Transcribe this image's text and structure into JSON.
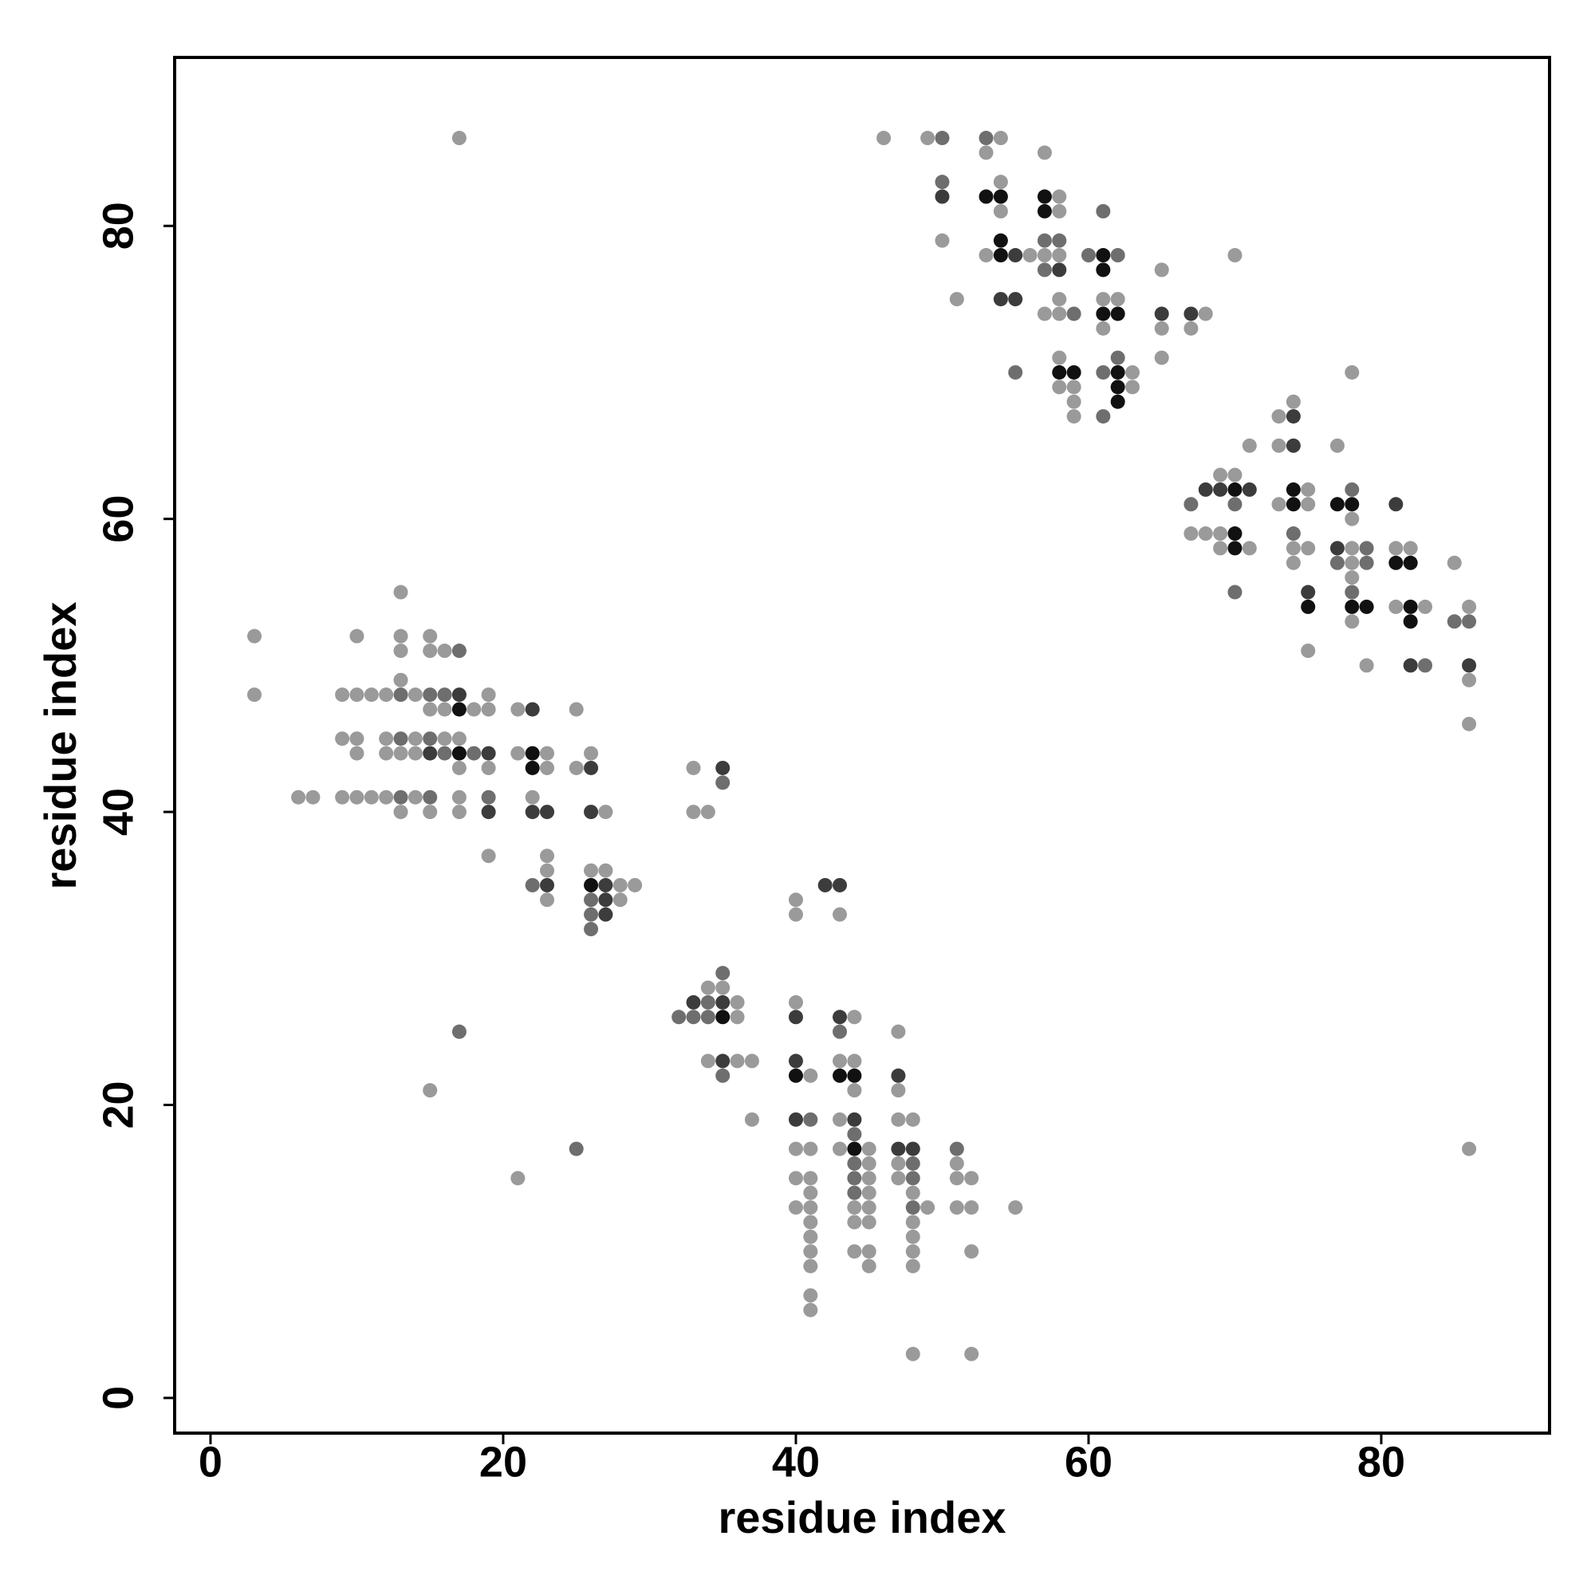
{
  "chart_data": {
    "type": "scatter",
    "xlabel": "residue index",
    "ylabel": "residue index",
    "xlim": [
      -2.45,
      91.5
    ],
    "ylim": [
      -2.4,
      91.5
    ],
    "xticks": [
      0,
      20,
      40,
      60,
      80
    ],
    "yticks": [
      0,
      20,
      40,
      60,
      80
    ],
    "grid": false,
    "series": [
      {
        "color": "#9a9a9a",
        "x": [
          17,
          46,
          49,
          54,
          53,
          57,
          54,
          58,
          54,
          58,
          50,
          53,
          56,
          57,
          58,
          70,
          65,
          51,
          58,
          61,
          62,
          57,
          58,
          68,
          61,
          65,
          67,
          58,
          65,
          63,
          58,
          59,
          63,
          59,
          59,
          78,
          74,
          73,
          71,
          73,
          77,
          69,
          70,
          75,
          73,
          75,
          78,
          67,
          68,
          69,
          69,
          71,
          74,
          75,
          78,
          81,
          82,
          74,
          78,
          85,
          78,
          81,
          83,
          86,
          78,
          75,
          79,
          86,
          86,
          86,
          13,
          3,
          10,
          13,
          15,
          13,
          15,
          16,
          13,
          3,
          9,
          10,
          11,
          12,
          14,
          19,
          15,
          16,
          18,
          19,
          21,
          25,
          9,
          10,
          12,
          14,
          16,
          17,
          10,
          12,
          13,
          14,
          21,
          23,
          26,
          17,
          19,
          23,
          25,
          33,
          6,
          7,
          9,
          10,
          11,
          12,
          14,
          17,
          22,
          13,
          15,
          17,
          27,
          33,
          34,
          19,
          23,
          23,
          26,
          27,
          28,
          29,
          23,
          28,
          40,
          40,
          43,
          34,
          35,
          36,
          40,
          36,
          44,
          47,
          34,
          36,
          37,
          43,
          44,
          41,
          15,
          44,
          47,
          37,
          43,
          47,
          48,
          40,
          41,
          43,
          45,
          45,
          47,
          51,
          21,
          40,
          41,
          45,
          47,
          51,
          52,
          41,
          45,
          48,
          40,
          41,
          44,
          45,
          49,
          51,
          52,
          55,
          41,
          44,
          45,
          48,
          41,
          48,
          41,
          44,
          45,
          48,
          52,
          41,
          45,
          48,
          41,
          41,
          48,
          52
        ],
        "y": [
          86,
          86,
          86,
          86,
          85,
          85,
          83,
          82,
          81,
          81,
          79,
          78,
          78,
          78,
          78,
          78,
          77,
          75,
          75,
          75,
          75,
          74,
          74,
          74,
          73,
          73,
          73,
          71,
          71,
          70,
          69,
          69,
          69,
          68,
          67,
          70,
          68,
          67,
          65,
          65,
          65,
          63,
          63,
          62,
          61,
          61,
          60,
          59,
          59,
          59,
          58,
          58,
          58,
          58,
          58,
          58,
          58,
          57,
          57,
          57,
          56,
          54,
          54,
          54,
          53,
          51,
          50,
          49,
          46,
          17,
          55,
          52,
          52,
          52,
          52,
          51,
          51,
          51,
          49,
          48,
          48,
          48,
          48,
          48,
          48,
          48,
          47,
          47,
          47,
          47,
          47,
          47,
          45,
          45,
          45,
          45,
          45,
          45,
          44,
          44,
          44,
          44,
          44,
          44,
          44,
          43,
          43,
          43,
          43,
          43,
          41,
          41,
          41,
          41,
          41,
          41,
          41,
          41,
          41,
          40,
          40,
          40,
          40,
          40,
          40,
          37,
          37,
          36,
          36,
          36,
          35,
          35,
          34,
          34,
          34,
          33,
          33,
          28,
          28,
          27,
          27,
          26,
          26,
          25,
          23,
          23,
          23,
          23,
          23,
          22,
          21,
          21,
          21,
          19,
          19,
          19,
          19,
          17,
          17,
          17,
          17,
          16,
          16,
          16,
          15,
          15,
          15,
          15,
          15,
          15,
          15,
          14,
          14,
          14,
          13,
          13,
          13,
          13,
          13,
          13,
          13,
          13,
          12,
          12,
          12,
          12,
          11,
          11,
          10,
          10,
          10,
          10,
          10,
          9,
          9,
          9,
          7,
          6,
          3,
          3
        ]
      },
      {
        "color": "#6e6e6e",
        "x": [
          50,
          53,
          50,
          61,
          57,
          58,
          60,
          62,
          57,
          59,
          62,
          55,
          61,
          61,
          78,
          67,
          70,
          74,
          79,
          77,
          79,
          70,
          78,
          85,
          86,
          83,
          17,
          13,
          15,
          16,
          13,
          15,
          16,
          18,
          35,
          13,
          15,
          19,
          22,
          26,
          26,
          26,
          35,
          34,
          32,
          33,
          34,
          17,
          43,
          35,
          41,
          44,
          25,
          51,
          44,
          48,
          44,
          48,
          44,
          48
        ],
        "y": [
          86,
          86,
          83,
          81,
          79,
          79,
          78,
          78,
          77,
          74,
          71,
          70,
          70,
          67,
          62,
          61,
          61,
          59,
          58,
          57,
          57,
          55,
          55,
          53,
          53,
          50,
          51,
          48,
          48,
          48,
          45,
          45,
          44,
          44,
          42,
          41,
          41,
          41,
          35,
          34,
          33,
          32,
          29,
          27,
          26,
          26,
          26,
          25,
          25,
          22,
          19,
          18,
          17,
          17,
          16,
          16,
          15,
          15,
          14,
          13
        ]
      },
      {
        "color": "#3c3c3c",
        "x": [
          50,
          55,
          58,
          54,
          55,
          65,
          67,
          68,
          69,
          71,
          74,
          74,
          81,
          77,
          75,
          82,
          86,
          17,
          22,
          15,
          19,
          26,
          35,
          19,
          22,
          23,
          26,
          23,
          27,
          42,
          43,
          27,
          27,
          33,
          35,
          40,
          43,
          35,
          40,
          47,
          40,
          44,
          47,
          48
        ],
        "y": [
          82,
          78,
          77,
          75,
          75,
          74,
          74,
          62,
          62,
          62,
          67,
          65,
          61,
          58,
          55,
          50,
          50,
          48,
          47,
          44,
          44,
          43,
          43,
          40,
          40,
          40,
          40,
          35,
          35,
          35,
          35,
          34,
          33,
          27,
          27,
          26,
          26,
          23,
          23,
          22,
          19,
          19,
          17,
          17
        ]
      },
      {
        "color": "#111111",
        "x": [
          53,
          54,
          57,
          57,
          54,
          54,
          61,
          61,
          61,
          62,
          58,
          59,
          62,
          62,
          62,
          70,
          74,
          74,
          77,
          78,
          70,
          70,
          81,
          82,
          75,
          78,
          79,
          82,
          82,
          17,
          17,
          22,
          22,
          26,
          35,
          40,
          43,
          44,
          44
        ],
        "y": [
          82,
          82,
          82,
          81,
          79,
          78,
          78,
          77,
          74,
          74,
          70,
          70,
          70,
          69,
          68,
          62,
          62,
          61,
          61,
          61,
          59,
          58,
          57,
          57,
          54,
          54,
          54,
          54,
          53,
          47,
          44,
          44,
          43,
          35,
          26,
          22,
          22,
          22,
          17
        ]
      }
    ]
  }
}
